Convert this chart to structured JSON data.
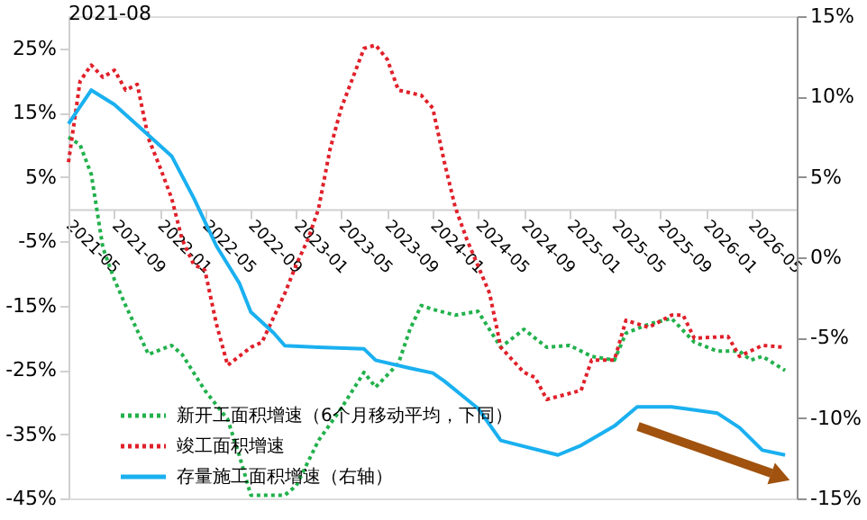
{
  "chart_data": {
    "type": "line",
    "annotations": [
      "2021-08"
    ],
    "xlim": [
      "2021-05",
      "2026-09"
    ],
    "xticks": [
      {
        "value": "2021-05",
        "label": "2021-05"
      },
      {
        "value": "2021-09",
        "label": "2021-09"
      },
      {
        "value": "2022-01",
        "label": "2022-01"
      },
      {
        "value": "2022-05",
        "label": "2022-05"
      },
      {
        "value": "2022-09",
        "label": "2022-09"
      },
      {
        "value": "2023-01",
        "label": "2023-01"
      },
      {
        "value": "2023-05",
        "label": "2023-05"
      },
      {
        "value": "2023-09",
        "label": "2023-09"
      },
      {
        "value": "2024-01",
        "label": "2024-01"
      },
      {
        "value": "2024-05",
        "label": "2024-05"
      },
      {
        "value": "2024-09",
        "label": "2024-09"
      },
      {
        "value": "2025-01",
        "label": "2025-01"
      },
      {
        "value": "2025-05",
        "label": "2025-05"
      },
      {
        "value": "2025-09",
        "label": "2025-09"
      },
      {
        "value": "2026-01",
        "label": "2026-01"
      },
      {
        "value": "2026-05",
        "label": "2026-05"
      }
    ],
    "ylim": [
      -45,
      30
    ],
    "yticks": [
      {
        "value": -45,
        "label": "-45%"
      },
      {
        "value": -35,
        "label": "-35%"
      },
      {
        "value": -25,
        "label": "-25%"
      },
      {
        "value": -15,
        "label": "-15%"
      },
      {
        "value": -5,
        "label": "-5%"
      },
      {
        "value": 5,
        "label": "5%"
      },
      {
        "value": 15,
        "label": "15%"
      },
      {
        "value": 25,
        "label": "25%"
      }
    ],
    "y2lim": [
      -15,
      15
    ],
    "y2ticks": [
      {
        "value": -15,
        "label": "-15%"
      },
      {
        "value": -10,
        "label": "-10%"
      },
      {
        "value": -5,
        "label": "-5%"
      },
      {
        "value": 0,
        "label": "0%"
      },
      {
        "value": 5,
        "label": "5%"
      },
      {
        "value": 10,
        "label": "10%"
      },
      {
        "value": 15,
        "label": "15%"
      }
    ],
    "grid": false,
    "legend": "bottom left",
    "marker": "none",
    "series": [
      {
        "name": "新开工面积增速（6个月移动平均，下同）",
        "color": "#22b14c",
        "line_style": "dotted",
        "x": [
          "2021-05",
          "2021-06",
          "2021-07",
          "2021-08",
          "2021-09",
          "2021-10",
          "2021-12",
          "2022-02",
          "2022-03",
          "2022-05",
          "2022-07",
          "2022-08",
          "2022-09",
          "2022-12",
          "2023-01",
          "2023-03",
          "2023-05",
          "2023-07",
          "2023-08",
          "2023-10",
          "2023-11",
          "2023-12",
          "2024-01",
          "2024-03",
          "2024-05",
          "2024-07",
          "2024-09",
          "2024-11",
          "2025-01",
          "2025-03",
          "2025-05",
          "2025-06",
          "2025-08",
          "2025-10",
          "2025-12",
          "2026-02",
          "2026-04",
          "2026-05",
          "2026-06",
          "2026-08"
        ],
        "values": [
          11.2,
          10,
          5.4,
          -6,
          -11,
          -15,
          -22.6,
          -21.2,
          -22.6,
          -28.2,
          -32.7,
          -38.3,
          -44.5,
          -44.5,
          -43,
          -36,
          -31,
          -25.4,
          -27.7,
          -24,
          -18.7,
          -15,
          -15.6,
          -16.5,
          -15.9,
          -21.5,
          -18.7,
          -21.5,
          -21.2,
          -22.9,
          -23.5,
          -19.3,
          -17.9,
          -17,
          -20.7,
          -22.1,
          -22.1,
          -23.5,
          -22.9,
          -25.1
        ]
      },
      {
        "name": "竣工面积增速",
        "color": "#e0202a",
        "line_style": "dotted",
        "x": [
          "2021-05",
          "2021-06",
          "2021-07",
          "2021-08",
          "2021-09",
          "2021-10",
          "2021-11",
          "2021-12",
          "2022-01",
          "2022-02",
          "2022-03",
          "2022-04",
          "2022-05",
          "2022-06",
          "2022-07",
          "2022-09",
          "2022-10",
          "2022-12",
          "2023-01",
          "2023-02",
          "2023-03",
          "2023-04",
          "2023-05",
          "2023-07",
          "2023-08",
          "2023-09",
          "2023-10",
          "2023-12",
          "2024-01",
          "2024-02",
          "2024-03",
          "2024-04",
          "2024-06",
          "2024-07",
          "2024-09",
          "2024-10",
          "2024-11",
          "2025-02",
          "2025-03",
          "2025-05",
          "2025-06",
          "2025-08",
          "2025-10",
          "2025-11",
          "2025-12",
          "2026-03",
          "2026-04",
          "2026-06",
          "2026-08"
        ],
        "values": [
          7.3,
          19.9,
          22.4,
          20.5,
          21.6,
          18.5,
          19.4,
          11,
          6.5,
          1.7,
          -4.7,
          -8.6,
          -9.5,
          -17.9,
          -24.3,
          -21.5,
          -20.7,
          -13.1,
          -8.6,
          -4.7,
          0,
          9.3,
          15.7,
          25,
          25.5,
          23.3,
          18.5,
          17.7,
          15.7,
          7.3,
          0.3,
          -4.7,
          -13.1,
          -21.5,
          -25.4,
          -26.2,
          -29.6,
          -28.2,
          -23.5,
          -23.5,
          -17.3,
          -18.4,
          -16.5,
          -16.5,
          -20.1,
          -19.8,
          -22.9,
          -21.2,
          -21.5
        ]
      },
      {
        "name": "存量施工面积增速（右轴）",
        "color": "#1ab0f0",
        "line_style": "solid",
        "axis": "y2",
        "x": [
          "2021-05",
          "2021-07",
          "2021-09",
          "2021-12",
          "2022-02",
          "2022-04",
          "2022-06",
          "2022-08",
          "2022-09",
          "2022-11",
          "2022-12",
          "2023-03",
          "2023-07",
          "2023-08",
          "2023-11",
          "2024-01",
          "2024-02",
          "2024-05",
          "2024-07",
          "2024-12",
          "2025-02",
          "2025-05",
          "2025-07",
          "2025-10",
          "2026-02",
          "2026-04",
          "2026-06",
          "2026-08"
        ],
        "values": [
          8.3,
          10.4,
          9.5,
          7.6,
          6.3,
          3.7,
          0.7,
          -1.6,
          -3.4,
          -4.7,
          -5.5,
          -5.6,
          -5.7,
          -6.4,
          -6.9,
          -7.2,
          -7.7,
          -9.4,
          -11.4,
          -12.3,
          -11.7,
          -10.5,
          -9.3,
          -9.3,
          -9.7,
          -10.6,
          -12,
          -12.3
        ]
      }
    ]
  }
}
